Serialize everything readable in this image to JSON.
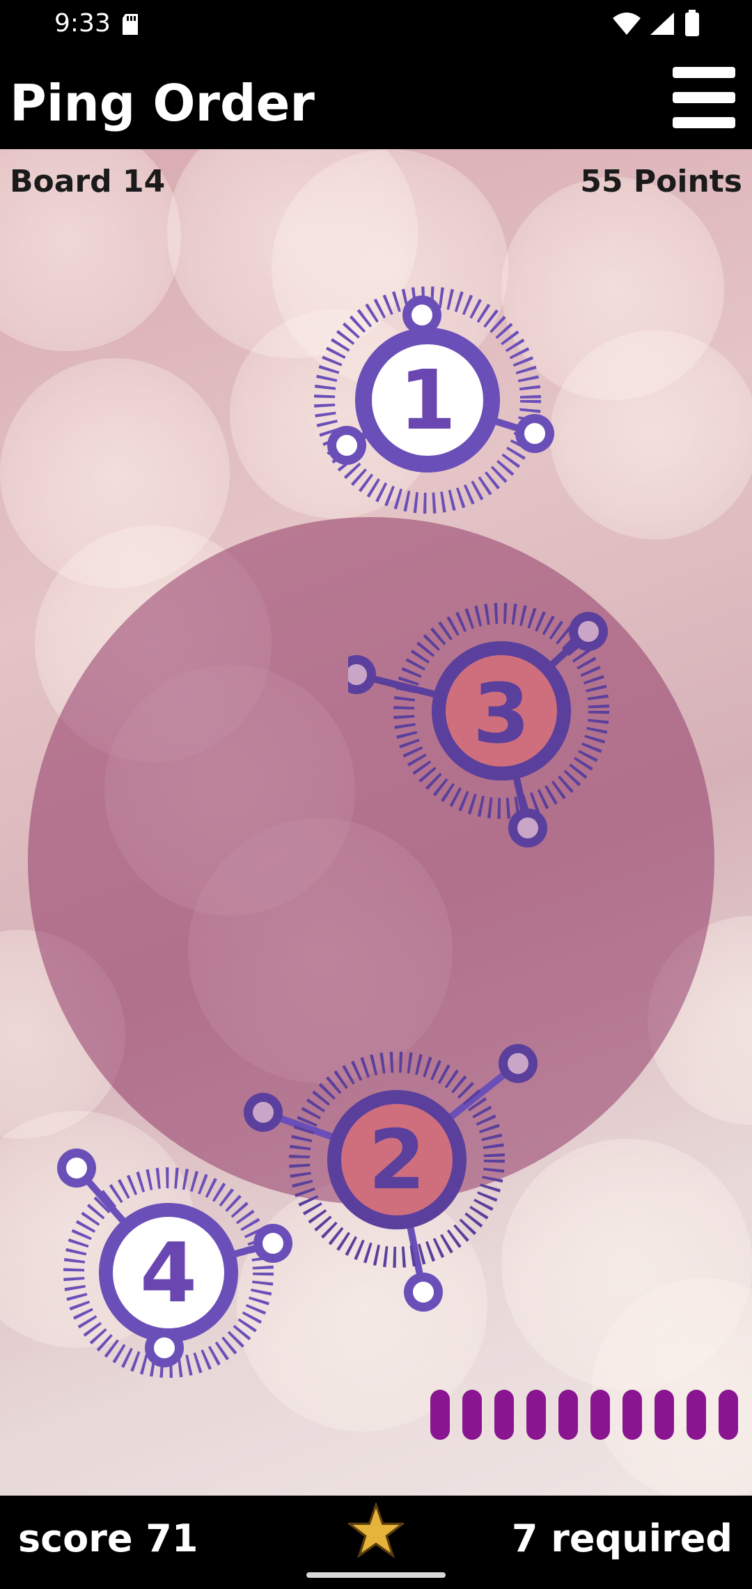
{
  "status_bar": {
    "time": "9:33"
  },
  "app_bar": {
    "title": "Ping Order",
    "menu_icon": "hamburger-menu-icon"
  },
  "board": {
    "board_label": "Board 14",
    "points_label": "55 Points"
  },
  "pings": [
    {
      "number": "1",
      "highlighted": false
    },
    {
      "number": "3",
      "highlighted": true
    },
    {
      "number": "2",
      "highlighted": true
    },
    {
      "number": "4",
      "highlighted": false
    }
  ],
  "progress": {
    "segments": 10
  },
  "bottom_bar": {
    "score": "score 71",
    "required": "7 required",
    "star_icon": "star-icon"
  },
  "colors": {
    "node_purple": "#6a4fb8",
    "ping_circle": "#8c2d5f",
    "progress_segment": "#8a1590",
    "star": "#e6b43a"
  }
}
